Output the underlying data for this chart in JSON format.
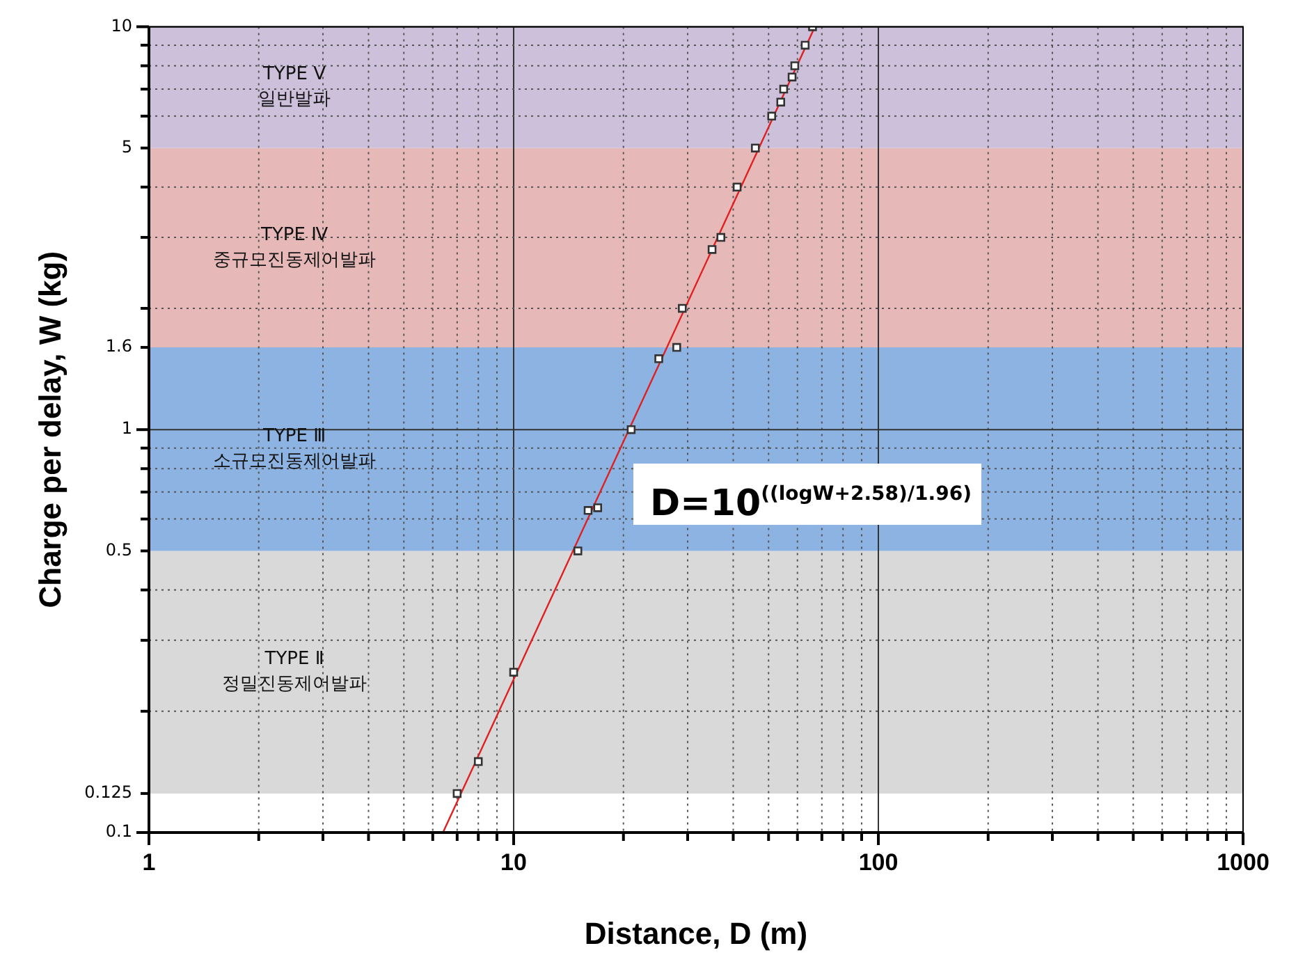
{
  "chart_data": {
    "type": "scatter",
    "xlabel": "Distance, D (m)",
    "ylabel": "Charge per delay, W (kg)",
    "log": "xy",
    "xlim": [
      1,
      1000
    ],
    "ylim": [
      0.1,
      10
    ],
    "xticks": [
      1,
      {
        "value": 2,
        "label": null
      },
      {
        "value": 3,
        "label": null
      },
      {
        "value": 4,
        "label": null
      },
      {
        "value": 5,
        "label": null
      },
      {
        "value": 6,
        "label": null
      },
      {
        "value": 7,
        "label": null
      },
      {
        "value": 8,
        "label": null
      },
      {
        "value": 9,
        "label": null
      },
      10,
      {
        "value": 20,
        "label": null
      },
      {
        "value": 30,
        "label": null
      },
      {
        "value": 40,
        "label": null
      },
      {
        "value": 50,
        "label": null
      },
      {
        "value": 60,
        "label": null
      },
      {
        "value": 70,
        "label": null
      },
      {
        "value": 80,
        "label": null
      },
      {
        "value": 90,
        "label": null
      },
      100,
      {
        "value": 200,
        "label": null
      },
      {
        "value": 300,
        "label": null
      },
      {
        "value": 400,
        "label": null
      },
      {
        "value": 500,
        "label": null
      },
      {
        "value": 600,
        "label": null
      },
      {
        "value": 700,
        "label": null
      },
      {
        "value": 800,
        "label": null
      },
      {
        "value": 900,
        "label": null
      },
      1000
    ],
    "yticks": [
      0.1,
      0.125,
      {
        "value": 0.2,
        "label": null
      },
      {
        "value": 0.3,
        "label": null
      },
      {
        "value": 0.4,
        "label": null
      },
      0.5,
      {
        "value": 0.6,
        "label": null
      },
      {
        "value": 0.7,
        "label": null
      },
      {
        "value": 0.8,
        "label": null
      },
      {
        "value": 0.9,
        "label": null
      },
      1,
      1.6,
      {
        "value": 2,
        "label": null
      },
      {
        "value": 3,
        "label": null
      },
      {
        "value": 4,
        "label": null
      },
      5,
      {
        "value": 6,
        "label": null
      },
      {
        "value": 7,
        "label": null
      },
      {
        "value": 8,
        "label": null
      },
      {
        "value": 9,
        "label": null
      },
      10
    ],
    "grid": true,
    "legend": false,
    "marker": "square",
    "series": [
      {
        "color": "#333333",
        "x": [
          7,
          8,
          10,
          15,
          16,
          17,
          21,
          25,
          28,
          29,
          35,
          37,
          41,
          46,
          51,
          54,
          55,
          58,
          59,
          63,
          66
        ],
        "values": [
          0.125,
          0.15,
          0.25,
          0.5,
          0.63,
          0.64,
          1,
          1.5,
          1.6,
          2,
          2.8,
          3,
          4,
          5,
          6,
          6.5,
          7,
          7.5,
          8,
          9,
          10
        ]
      },
      {
        "type": "line",
        "color": "#e02020",
        "marker": "none",
        "x": [
          6.4,
          67
        ],
        "values": [
          0.1,
          10
        ]
      }
    ],
    "bands": [
      {
        "axis": "y",
        "from": 0.125,
        "to": 0.5,
        "label": "TYPE Ⅱ\n정밀진동제어발파",
        "color": "#d9d9d9"
      },
      {
        "axis": "y",
        "from": 0.5,
        "to": 1.6,
        "label": "TYPE Ⅲ\n소규모진동제어발파",
        "color": "#8db3e2"
      },
      {
        "axis": "y",
        "from": 1.6,
        "to": 5,
        "label": "TYPE Ⅳ\n중규모진동제어발파",
        "color": "#e6b9b8"
      },
      {
        "axis": "y",
        "from": 5,
        "to": 10,
        "label": "TYPE Ⅴ\n일반발파",
        "color": "#ccc0da"
      }
    ],
    "annotations": [
      "D=10$^{((logW+2.58)/1.96)}$"
    ]
  }
}
